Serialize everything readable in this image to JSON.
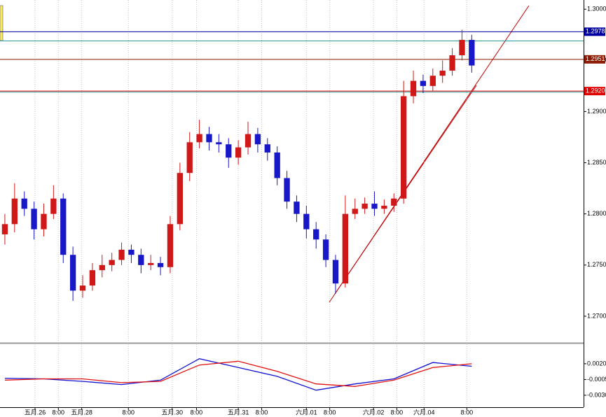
{
  "chart_data": [
    {
      "type": "candlestick",
      "up_color": "#d01818",
      "down_color": "#1818c8",
      "open": [
        1.278,
        1.279,
        1.2815,
        1.2805,
        1.2785,
        1.28,
        1.2815,
        1.276,
        1.2725,
        1.273,
        1.2745,
        1.275,
        1.2755,
        1.2765,
        1.276,
        1.275,
        1.2752,
        1.2748,
        1.279,
        1.284,
        1.287,
        1.2878,
        1.287,
        1.2868,
        1.2855,
        1.2865,
        1.2878,
        1.2868,
        1.286,
        1.2835,
        1.2812,
        1.28,
        1.2785,
        1.2775,
        1.2755,
        1.2732,
        1.28,
        1.2805,
        1.281,
        1.2805,
        1.2808,
        1.2815,
        1.2915,
        1.293,
        1.2925,
        1.2935,
        1.294,
        1.2955,
        1.297
      ],
      "high": [
        1.28,
        1.283,
        1.2822,
        1.2812,
        1.281,
        1.2828,
        1.282,
        1.2768,
        1.274,
        1.2752,
        1.276,
        1.2762,
        1.2772,
        1.277,
        1.2766,
        1.276,
        1.2758,
        1.2798,
        1.285,
        1.288,
        1.2892,
        1.2885,
        1.2878,
        1.2874,
        1.2872,
        1.289,
        1.2884,
        1.2874,
        1.2866,
        1.2842,
        1.2818,
        1.2808,
        1.2792,
        1.278,
        1.276,
        1.2818,
        1.2815,
        1.2816,
        1.2822,
        1.2814,
        1.282,
        1.293,
        1.294,
        1.2936,
        1.2942,
        1.295,
        1.2962,
        1.298,
        1.2975
      ],
      "low": [
        1.277,
        1.2782,
        1.2798,
        1.2775,
        1.2778,
        1.2795,
        1.2752,
        1.2715,
        1.2718,
        1.2725,
        1.2738,
        1.2744,
        1.275,
        1.2752,
        1.2742,
        1.2745,
        1.274,
        1.2742,
        1.2784,
        1.2832,
        1.2864,
        1.2862,
        1.286,
        1.2845,
        1.2848,
        1.2858,
        1.286,
        1.2852,
        1.2828,
        1.2805,
        1.2792,
        1.2776,
        1.2766,
        1.2748,
        1.2722,
        1.2728,
        1.2795,
        1.28,
        1.2798,
        1.28,
        1.2802,
        1.281,
        1.2908,
        1.2918,
        1.292,
        1.2928,
        1.2935,
        1.295,
        1.2938
      ],
      "close": [
        1.279,
        1.2815,
        1.2805,
        1.2785,
        1.28,
        1.2815,
        1.276,
        1.2725,
        1.273,
        1.2745,
        1.275,
        1.2755,
        1.2765,
        1.276,
        1.275,
        1.2752,
        1.2748,
        1.279,
        1.284,
        1.287,
        1.2878,
        1.287,
        1.2868,
        1.2855,
        1.2865,
        1.2878,
        1.2868,
        1.286,
        1.2835,
        1.2812,
        1.28,
        1.2785,
        1.2775,
        1.2755,
        1.2732,
        1.28,
        1.2805,
        1.281,
        1.2805,
        1.2808,
        1.2815,
        1.2915,
        1.293,
        1.2925,
        1.2935,
        1.294,
        1.2955,
        1.297,
        1.2945
      ],
      "xlim": [
        -0.5,
        59.5
      ],
      "xticks": [
        {
          "value": 3.1,
          "label": "五月.26"
        },
        {
          "value": 5.5,
          "label": "8:00"
        },
        {
          "value": 7.9,
          "label": "五月.28"
        },
        {
          "value": 12.7,
          "label": "8:00"
        },
        {
          "value": 17.2,
          "label": "五月.30"
        },
        {
          "value": 19.7,
          "label": "8:00"
        },
        {
          "value": 24,
          "label": "五月.31"
        },
        {
          "value": 26.4,
          "label": "8:00"
        },
        {
          "value": 31,
          "label": "六月.01"
        },
        {
          "value": 33.4,
          "label": "8:00"
        },
        {
          "value": 37.9,
          "label": "六月.02"
        },
        {
          "value": 40.3,
          "label": "8:00"
        },
        {
          "value": 43.1,
          "label": "六月.04"
        },
        {
          "value": 47.5,
          "label": "8:00"
        }
      ],
      "ylim": [
        1.2674,
        1.3009
      ],
      "yticks": [
        {
          "value": 1.27,
          "label": "1.2700"
        },
        {
          "value": 1.275,
          "label": "1.2750"
        },
        {
          "value": 1.28,
          "label": "1.2800"
        },
        {
          "value": 1.285,
          "label": "1.2850"
        },
        {
          "value": 1.29,
          "label": "1.2900"
        },
        {
          "value": 1.295,
          "label": "1.2950"
        },
        {
          "value": 1.3,
          "label": "1.3000"
        }
      ],
      "guides": [
        1.2969,
        1.2919
      ],
      "levels": [
        {
          "value": 1.2978,
          "label": "1.2978",
          "color": "#0000a0"
        },
        {
          "value": 1.2951,
          "label": "1.2951",
          "color": "#8b1a00"
        },
        {
          "value": 1.292,
          "label": "1.2920",
          "color": "#e00000"
        }
      ]
    },
    {
      "type": "line",
      "x": [
        0,
        4,
        8,
        12,
        16,
        20,
        24,
        28,
        32,
        36,
        40,
        44,
        48
      ],
      "series": [
        {
          "color": "#1010d0",
          "values": [
            -0.0003,
            -0.0004,
            -0.0008,
            -0.0013,
            -0.0006,
            0.0028,
            0.0014,
            0.0,
            -0.0022,
            -0.0012,
            -0.0004,
            0.0022,
            0.0016
          ]
        },
        {
          "color": "#e01010",
          "values": [
            -0.0006,
            -0.0004,
            -0.0004,
            -0.001,
            -0.0008,
            0.0018,
            0.0024,
            0.0008,
            -0.0012,
            -0.0016,
            -0.0006,
            0.0014,
            0.002
          ]
        }
      ],
      "xlim": [
        -0.5,
        59.5
      ],
      "ylim": [
        -0.0049,
        0.0051
      ],
      "yticks": [
        {
          "value": -0.003,
          "label": "-0.0030"
        },
        {
          "value": -0.0005,
          "label": "-0.0005"
        },
        {
          "value": 0.002,
          "label": "0.0020"
        }
      ]
    }
  ]
}
